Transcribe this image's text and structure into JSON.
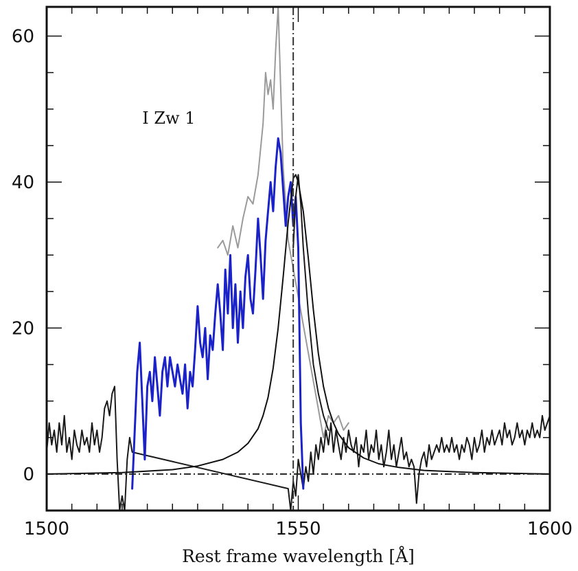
{
  "chart_data": {
    "type": "line",
    "title": "",
    "xlabel": "Rest frame wavelength [Å]",
    "ylabel": "",
    "xlim": [
      1500,
      1600
    ],
    "ylim": [
      -5,
      64
    ],
    "x_ticks": [
      1500,
      1550,
      1600
    ],
    "y_ticks": [
      0,
      20,
      40,
      60
    ],
    "x_minor_step": 5,
    "y_minor_step": 5,
    "grid": false,
    "annotation": {
      "text": "I Zw 1",
      "x": 1519,
      "y": 48
    },
    "vertical_line": {
      "x": 1549,
      "style": "dash-dot",
      "color": "#333333"
    },
    "zero_line": {
      "y": 0,
      "style": "dash-dot",
      "color": "#222222"
    },
    "series": [
      {
        "color": "#9a9a9a",
        "width": 2,
        "points": [
          [
            1534,
            31
          ],
          [
            1535,
            32
          ],
          [
            1536,
            30
          ],
          [
            1537,
            34
          ],
          [
            1538,
            31
          ],
          [
            1539,
            35
          ],
          [
            1540,
            38
          ],
          [
            1541,
            37
          ],
          [
            1542,
            41
          ],
          [
            1543,
            48
          ],
          [
            1543.5,
            55
          ],
          [
            1544,
            52
          ],
          [
            1544.5,
            54
          ],
          [
            1545,
            50
          ],
          [
            1545.5,
            58
          ],
          [
            1546,
            64
          ],
          [
            1547,
            42
          ],
          [
            1548,
            32
          ],
          [
            1555,
            5
          ],
          [
            1556,
            8
          ],
          [
            1557,
            7
          ],
          [
            1558,
            8
          ],
          [
            1559,
            6
          ],
          [
            1560,
            7
          ]
        ]
      },
      {
        "color": "#1a1a1a",
        "width": 2,
        "points": [
          [
            1500,
            3
          ],
          [
            1500.5,
            7
          ],
          [
            1501,
            4
          ],
          [
            1501.5,
            6
          ],
          [
            1502,
            3
          ],
          [
            1502.5,
            7
          ],
          [
            1503,
            4
          ],
          [
            1503.5,
            8
          ],
          [
            1504,
            3
          ],
          [
            1504.5,
            5
          ],
          [
            1505,
            2
          ],
          [
            1505.5,
            6
          ],
          [
            1506,
            4
          ],
          [
            1506.5,
            3
          ],
          [
            1507,
            6
          ],
          [
            1507.5,
            4
          ],
          [
            1508,
            5
          ],
          [
            1508.5,
            3
          ],
          [
            1509,
            7
          ],
          [
            1509.5,
            4
          ],
          [
            1510,
            6
          ],
          [
            1510.5,
            3
          ],
          [
            1511,
            5
          ],
          [
            1511.5,
            9
          ],
          [
            1512,
            10
          ],
          [
            1512.5,
            8
          ],
          [
            1513,
            11
          ],
          [
            1513.5,
            12
          ],
          [
            1514,
            2
          ],
          [
            1514.5,
            -5
          ],
          [
            1515,
            -3
          ],
          [
            1515.5,
            -5
          ],
          [
            1516,
            2
          ],
          [
            1516.5,
            5
          ],
          [
            1517,
            3
          ],
          [
            1548,
            -2
          ],
          [
            1548.5,
            -5
          ],
          [
            1549,
            -1
          ],
          [
            1549.5,
            -3
          ],
          [
            1550,
            2
          ],
          [
            1551,
            -2
          ],
          [
            1551.5,
            1
          ],
          [
            1552,
            -1
          ],
          [
            1552.5,
            3
          ],
          [
            1553,
            0
          ],
          [
            1553.5,
            4
          ],
          [
            1554,
            2
          ],
          [
            1554.5,
            5
          ],
          [
            1555,
            3
          ],
          [
            1555.5,
            6
          ],
          [
            1556,
            4
          ],
          [
            1556.5,
            7
          ],
          [
            1557,
            3
          ],
          [
            1557.5,
            6
          ],
          [
            1558,
            4
          ],
          [
            1558.5,
            2
          ],
          [
            1559,
            5
          ],
          [
            1559.5,
            3
          ],
          [
            1560,
            6
          ],
          [
            1560.5,
            4
          ],
          [
            1561,
            3
          ],
          [
            1561.5,
            5
          ],
          [
            1562,
            1
          ],
          [
            1562.5,
            4
          ],
          [
            1563,
            3
          ],
          [
            1563.5,
            6
          ],
          [
            1564,
            2
          ],
          [
            1564.5,
            4
          ],
          [
            1565,
            3
          ],
          [
            1565.5,
            6
          ],
          [
            1566,
            2
          ],
          [
            1566.5,
            4
          ],
          [
            1567,
            1
          ],
          [
            1567.5,
            3
          ],
          [
            1568,
            6
          ],
          [
            1568.5,
            2
          ],
          [
            1569,
            4
          ],
          [
            1569.5,
            1
          ],
          [
            1570,
            3
          ],
          [
            1570.5,
            5
          ],
          [
            1571,
            2
          ],
          [
            1571.5,
            3
          ],
          [
            1572,
            1
          ],
          [
            1572.5,
            2
          ],
          [
            1573,
            1
          ],
          [
            1573.5,
            -4
          ],
          [
            1574,
            0
          ],
          [
            1574.5,
            2
          ],
          [
            1575,
            3
          ],
          [
            1575.5,
            1
          ],
          [
            1576,
            4
          ],
          [
            1576.5,
            2
          ],
          [
            1577,
            3
          ],
          [
            1577.5,
            4
          ],
          [
            1578,
            3
          ],
          [
            1578.5,
            5
          ],
          [
            1579,
            3
          ],
          [
            1579.5,
            4
          ],
          [
            1580,
            3
          ],
          [
            1580.5,
            5
          ],
          [
            1581,
            3
          ],
          [
            1581.5,
            4
          ],
          [
            1582,
            2
          ],
          [
            1582.5,
            4
          ],
          [
            1583,
            3
          ],
          [
            1583.5,
            5
          ],
          [
            1584,
            4
          ],
          [
            1584.5,
            2
          ],
          [
            1585,
            5
          ],
          [
            1585.5,
            3
          ],
          [
            1586,
            4
          ],
          [
            1586.5,
            6
          ],
          [
            1587,
            3
          ],
          [
            1587.5,
            5
          ],
          [
            1588,
            4
          ],
          [
            1588.5,
            6
          ],
          [
            1589,
            4
          ],
          [
            1589.5,
            5
          ],
          [
            1590,
            6
          ],
          [
            1590.5,
            4
          ],
          [
            1591,
            7
          ],
          [
            1591.5,
            5
          ],
          [
            1592,
            6
          ],
          [
            1592.5,
            4
          ],
          [
            1593,
            5
          ],
          [
            1593.5,
            7
          ],
          [
            1594,
            5
          ],
          [
            1594.5,
            6
          ],
          [
            1595,
            4
          ],
          [
            1595.5,
            6
          ],
          [
            1596,
            5
          ],
          [
            1596.5,
            7
          ],
          [
            1597,
            5
          ],
          [
            1597.5,
            6
          ],
          [
            1598,
            5
          ],
          [
            1598.5,
            8
          ],
          [
            1599,
            6
          ],
          [
            1599.5,
            7
          ],
          [
            1600,
            8
          ]
        ]
      },
      {
        "color": "#1a22c8",
        "width": 3,
        "points": [
          [
            1517,
            -2
          ],
          [
            1517.5,
            6
          ],
          [
            1518,
            14
          ],
          [
            1518.5,
            18
          ],
          [
            1519,
            10
          ],
          [
            1519.5,
            2
          ],
          [
            1520,
            12
          ],
          [
            1520.5,
            14
          ],
          [
            1521,
            10
          ],
          [
            1521.5,
            16
          ],
          [
            1522,
            12
          ],
          [
            1522.5,
            8
          ],
          [
            1523,
            14
          ],
          [
            1523.5,
            16
          ],
          [
            1524,
            12
          ],
          [
            1524.5,
            16
          ],
          [
            1525,
            14
          ],
          [
            1525.5,
            12
          ],
          [
            1526,
            15
          ],
          [
            1526.5,
            13
          ],
          [
            1527,
            11
          ],
          [
            1527.5,
            15
          ],
          [
            1528,
            9
          ],
          [
            1528.5,
            14
          ],
          [
            1529,
            12
          ],
          [
            1529.5,
            17
          ],
          [
            1530,
            23
          ],
          [
            1530.5,
            18
          ],
          [
            1531,
            16
          ],
          [
            1531.5,
            20
          ],
          [
            1532,
            13
          ],
          [
            1532.5,
            19
          ],
          [
            1533,
            17
          ],
          [
            1533.5,
            22
          ],
          [
            1534,
            26
          ],
          [
            1534.5,
            22
          ],
          [
            1535,
            17
          ],
          [
            1535.5,
            28
          ],
          [
            1536,
            22
          ],
          [
            1536.5,
            30
          ],
          [
            1537,
            20
          ],
          [
            1537.5,
            26
          ],
          [
            1538,
            18
          ],
          [
            1538.5,
            25
          ],
          [
            1539,
            20
          ],
          [
            1539.5,
            27
          ],
          [
            1540,
            30
          ],
          [
            1540.5,
            24
          ],
          [
            1541,
            22
          ],
          [
            1541.5,
            28
          ],
          [
            1542,
            35
          ],
          [
            1542.5,
            30
          ],
          [
            1543,
            24
          ],
          [
            1543.5,
            32
          ],
          [
            1544,
            36
          ],
          [
            1544.5,
            40
          ],
          [
            1545,
            36
          ],
          [
            1545.5,
            42
          ],
          [
            1546,
            46
          ],
          [
            1546.5,
            44
          ],
          [
            1547,
            39
          ],
          [
            1547.5,
            34
          ],
          [
            1548,
            38
          ],
          [
            1548.5,
            40
          ],
          [
            1549,
            34
          ],
          [
            1549.5,
            38
          ],
          [
            1550,
            31
          ],
          [
            1550.5,
            7
          ],
          [
            1551,
            -2
          ]
        ]
      },
      {
        "color": "#1a1a1a",
        "width": 2,
        "points": [
          [
            1549,
            31
          ],
          [
            1549.5,
            38
          ],
          [
            1550,
            41
          ],
          [
            1550.5,
            37
          ],
          [
            1551,
            31
          ],
          [
            1552,
            22
          ],
          [
            1553,
            15
          ],
          [
            1554,
            11
          ],
          [
            1555,
            8
          ],
          [
            1556,
            6
          ]
        ]
      },
      {
        "color": "#111111",
        "width": 2,
        "points": [
          [
            1500,
            0
          ],
          [
            1515,
            0.2
          ],
          [
            1525,
            0.6
          ],
          [
            1530,
            1.1
          ],
          [
            1535,
            2.0
          ],
          [
            1538,
            3.0
          ],
          [
            1540,
            4.2
          ],
          [
            1542,
            6.2
          ],
          [
            1543,
            8.0
          ],
          [
            1544,
            10.5
          ],
          [
            1545,
            14.5
          ],
          [
            1546,
            20.0
          ],
          [
            1547,
            27.0
          ],
          [
            1548,
            34.5
          ],
          [
            1549,
            40.5
          ],
          [
            1549.5,
            41.0
          ],
          [
            1550,
            40.0
          ],
          [
            1551,
            36.0
          ],
          [
            1552,
            29.5
          ],
          [
            1553,
            22.5
          ],
          [
            1554,
            16.5
          ],
          [
            1555,
            12.0
          ],
          [
            1556,
            9.0
          ],
          [
            1557,
            7.0
          ],
          [
            1558,
            5.5
          ],
          [
            1560,
            3.6
          ],
          [
            1563,
            2.2
          ],
          [
            1566,
            1.4
          ],
          [
            1570,
            0.9
          ],
          [
            1575,
            0.5
          ],
          [
            1585,
            0.2
          ],
          [
            1600,
            0
          ]
        ]
      }
    ]
  }
}
